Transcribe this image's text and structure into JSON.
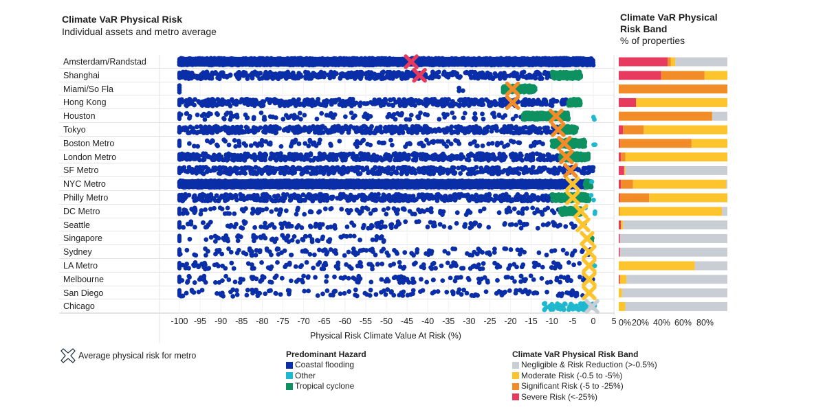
{
  "header": {
    "title": "Climate VaR Physical Risk",
    "subtitle": "Individual assets and metro average"
  },
  "right_header": {
    "title": "Climate VaR Physical Risk Band",
    "subtitle": "% of properties"
  },
  "colors": {
    "coastal_flooding": "#0a2ea8",
    "other": "#1fb8cf",
    "tropical_cyclone": "#0e9160",
    "negligible": "#c8ced3",
    "moderate": "#fdc42e",
    "significant": "#f28c28",
    "severe": "#e63a5e"
  },
  "legends": {
    "average_label": "Average physical risk for metro",
    "hazard": {
      "title": "Predominant Hazard",
      "items": [
        {
          "label": "Coastal flooding",
          "color": "#0a2ea8"
        },
        {
          "label": "Other",
          "color": "#1fb8cf"
        },
        {
          "label": "Tropical cyclone",
          "color": "#0e9160"
        }
      ]
    },
    "band": {
      "title": "Climate VaR Physical Risk Band",
      "items": [
        {
          "label": "Negligible & Risk Reduction (>-0.5%)",
          "color": "#c8ced3"
        },
        {
          "label": "Moderate Risk (-0.5 to -5%)",
          "color": "#fdc42e"
        },
        {
          "label": "Significant Risk (-5 to -25%)",
          "color": "#f28c28"
        },
        {
          "label": "Severe Risk (<-25%)",
          "color": "#e63a5e"
        }
      ]
    }
  },
  "chart_data": [
    {
      "type": "scatter",
      "title": "Climate VaR Physical Risk",
      "subtitle": "Individual assets and metro average",
      "xlabel": "Physical Risk Climate Value At Risk (%)",
      "xlim": [
        -100,
        5
      ],
      "xticks": [
        "-100",
        "-95",
        "-90",
        "-85",
        "-80",
        "-75",
        "-70",
        "-65",
        "-60",
        "-55",
        "-50",
        "-45",
        "-40",
        "-35",
        "-30",
        "-25",
        "-20",
        "-15",
        "-10",
        "-5",
        "0",
        "5"
      ],
      "grid": true,
      "categories": [
        "Amsterdam/Randstad",
        "Shanghai",
        "Miami/So Fla",
        "Hong Kong",
        "Houston",
        "Tokyo",
        "Boston Metro",
        "London Metro",
        "SF Metro",
        "NYC Metro",
        "Philly Metro",
        "DC Metro",
        "Seattle",
        "Singapore",
        "Sydney",
        "LA Metro",
        "Melbourne",
        "San Diego",
        "Chicago"
      ],
      "averages": [
        {
          "metro": "Amsterdam/Randstad",
          "value": -44,
          "band": "severe"
        },
        {
          "metro": "Shanghai",
          "value": -42,
          "band": "severe"
        },
        {
          "metro": "Miami/So Fla",
          "value": -19.5,
          "band": "significant"
        },
        {
          "metro": "Hong Kong",
          "value": -19.5,
          "band": "significant"
        },
        {
          "metro": "Houston",
          "value": -9,
          "band": "significant"
        },
        {
          "metro": "Tokyo",
          "value": -8.5,
          "band": "significant"
        },
        {
          "metro": "Boston Metro",
          "value": -7,
          "band": "significant"
        },
        {
          "metro": "London Metro",
          "value": -6.5,
          "band": "significant"
        },
        {
          "metro": "SF Metro",
          "value": -5.5,
          "band": "significant"
        },
        {
          "metro": "NYC Metro",
          "value": -5,
          "band": "moderate"
        },
        {
          "metro": "Philly Metro",
          "value": -5,
          "band": "moderate"
        },
        {
          "metro": "DC Metro",
          "value": -3,
          "band": "moderate"
        },
        {
          "metro": "Seattle",
          "value": -2.5,
          "band": "moderate"
        },
        {
          "metro": "Singapore",
          "value": -1.5,
          "band": "moderate"
        },
        {
          "metro": "Sydney",
          "value": -1,
          "band": "moderate"
        },
        {
          "metro": "LA Metro",
          "value": -1,
          "band": "moderate"
        },
        {
          "metro": "Melbourne",
          "value": -1,
          "band": "moderate"
        },
        {
          "metro": "San Diego",
          "value": -1,
          "band": "moderate"
        },
        {
          "metro": "Chicago",
          "value": -0.3,
          "band": "negligible"
        }
      ],
      "assets": [
        {
          "metro": "Amsterdam/Randstad",
          "segments": [
            {
              "hazard": "coastal_flooding",
              "from": -100,
              "to": 0,
              "density": "dense"
            }
          ]
        },
        {
          "metro": "Shanghai",
          "segments": [
            {
              "hazard": "coastal_flooding",
              "from": -100,
              "to": -10,
              "density": "medium"
            },
            {
              "hazard": "tropical_cyclone",
              "from": -10,
              "to": -3,
              "density": "dense"
            }
          ]
        },
        {
          "metro": "Miami/So Fla",
          "segments": [
            {
              "hazard": "coastal_flooding",
              "from": -100,
              "to": -100,
              "density": "dense"
            },
            {
              "hazard": "coastal_flooding",
              "from": -33,
              "to": -31,
              "density": "sparse"
            },
            {
              "hazard": "tropical_cyclone",
              "from": -22,
              "to": -14,
              "density": "dense"
            }
          ]
        },
        {
          "metro": "Hong Kong",
          "segments": [
            {
              "hazard": "coastal_flooding",
              "from": -100,
              "to": -6,
              "density": "medium"
            },
            {
              "hazard": "tropical_cyclone",
              "from": -6,
              "to": -3,
              "density": "dense"
            }
          ]
        },
        {
          "metro": "Houston",
          "segments": [
            {
              "hazard": "coastal_flooding",
              "from": -100,
              "to": -15,
              "density": "sparse"
            },
            {
              "hazard": "tropical_cyclone",
              "from": -17,
              "to": -6,
              "density": "dense"
            },
            {
              "hazard": "other",
              "from": 0,
              "to": 0.5,
              "density": "sparse"
            }
          ]
        },
        {
          "metro": "Tokyo",
          "segments": [
            {
              "hazard": "coastal_flooding",
              "from": -100,
              "to": -8,
              "density": "medium"
            },
            {
              "hazard": "tropical_cyclone",
              "from": -8,
              "to": -4,
              "density": "dense"
            }
          ]
        },
        {
          "metro": "Boston Metro",
          "segments": [
            {
              "hazard": "coastal_flooding",
              "from": -100,
              "to": -8,
              "density": "sparse"
            },
            {
              "hazard": "tropical_cyclone",
              "from": -10,
              "to": -2,
              "density": "dense"
            },
            {
              "hazard": "other",
              "from": 0,
              "to": 0.5,
              "density": "sparse"
            }
          ]
        },
        {
          "metro": "London Metro",
          "segments": [
            {
              "hazard": "coastal_flooding",
              "from": -100,
              "to": -8,
              "density": "medium"
            },
            {
              "hazard": "tropical_cyclone",
              "from": -8,
              "to": -1,
              "density": "dense"
            }
          ]
        },
        {
          "metro": "SF Metro",
          "segments": [
            {
              "hazard": "coastal_flooding",
              "from": -100,
              "to": 0,
              "density": "medium"
            }
          ]
        },
        {
          "metro": "NYC Metro",
          "segments": [
            {
              "hazard": "coastal_flooding",
              "from": -100,
              "to": -2,
              "density": "dense"
            },
            {
              "hazard": "tropical_cyclone",
              "from": -2,
              "to": -0.5,
              "density": "dense"
            },
            {
              "hazard": "other",
              "from": -0.5,
              "to": 0.5,
              "density": "sparse"
            }
          ]
        },
        {
          "metro": "Philly Metro",
          "segments": [
            {
              "hazard": "coastal_flooding",
              "from": -100,
              "to": -5,
              "density": "medium"
            },
            {
              "hazard": "tropical_cyclone",
              "from": -10,
              "to": -1,
              "density": "dense"
            },
            {
              "hazard": "other",
              "from": -1,
              "to": 0.5,
              "density": "sparse"
            }
          ]
        },
        {
          "metro": "DC Metro",
          "segments": [
            {
              "hazard": "coastal_flooding",
              "from": -100,
              "to": -3,
              "density": "sparse"
            },
            {
              "hazard": "tropical_cyclone",
              "from": -8,
              "to": -3,
              "density": "dense"
            },
            {
              "hazard": "other",
              "from": -2,
              "to": 0.5,
              "density": "sparse"
            }
          ]
        },
        {
          "metro": "Seattle",
          "segments": [
            {
              "hazard": "coastal_flooding",
              "from": -100,
              "to": 0,
              "density": "sparse"
            }
          ]
        },
        {
          "metro": "Singapore",
          "segments": [
            {
              "hazard": "coastal_flooding",
              "from": -100,
              "to": -50,
              "density": "sparse"
            },
            {
              "hazard": "tropical_cyclone",
              "from": -0.5,
              "to": 0,
              "density": "sparse"
            }
          ]
        },
        {
          "metro": "Sydney",
          "segments": [
            {
              "hazard": "coastal_flooding",
              "from": -100,
              "to": 0,
              "density": "sparse"
            }
          ]
        },
        {
          "metro": "LA Metro",
          "segments": [
            {
              "hazard": "coastal_flooding",
              "from": -100,
              "to": 0,
              "density": "sparse"
            },
            {
              "hazard": "other",
              "from": -1,
              "to": 0.5,
              "density": "sparse"
            }
          ]
        },
        {
          "metro": "Melbourne",
          "segments": [
            {
              "hazard": "coastal_flooding",
              "from": -100,
              "to": 0,
              "density": "sparse"
            }
          ]
        },
        {
          "metro": "San Diego",
          "segments": [
            {
              "hazard": "coastal_flooding",
              "from": -100,
              "to": 0,
              "density": "sparse"
            }
          ]
        },
        {
          "metro": "Chicago",
          "segments": [
            {
              "hazard": "other",
              "from": -12,
              "to": 0.5,
              "density": "medium"
            }
          ]
        }
      ]
    },
    {
      "type": "bar",
      "stacked": true,
      "orientation": "horizontal",
      "title": "Climate VaR Physical Risk Band",
      "subtitle": "% of properties",
      "xticks": [
        "0%",
        "20%",
        "40%",
        "60%",
        "80%"
      ],
      "xlim": [
        0,
        100
      ],
      "categories": [
        "Amsterdam/Randstad",
        "Shanghai",
        "Miami/So Fla",
        "Hong Kong",
        "Houston",
        "Tokyo",
        "Boston Metro",
        "London Metro",
        "SF Metro",
        "NYC Metro",
        "Philly Metro",
        "DC Metro",
        "Seattle",
        "Singapore",
        "Sydney",
        "LA Metro",
        "Melbourne",
        "San Diego",
        "Chicago"
      ],
      "series": [
        {
          "name": "Severe Risk (<-25%)",
          "key": "severe",
          "values": [
            45,
            39,
            0,
            16,
            0,
            4,
            1,
            2,
            5,
            2,
            1,
            0,
            2,
            1,
            1,
            0,
            1,
            0,
            0
          ]
        },
        {
          "name": "Significant Risk (-5 to -25%)",
          "key": "significant",
          "values": [
            3,
            40,
            100,
            0,
            86,
            19,
            66,
            4,
            0,
            11,
            27,
            1,
            0,
            0,
            0,
            0,
            0,
            0,
            0
          ]
        },
        {
          "name": "Moderate Risk (-0.5 to -5%)",
          "key": "moderate",
          "values": [
            4,
            21,
            0,
            84,
            0,
            77,
            33,
            94,
            1,
            86,
            72,
            94,
            2,
            0,
            0,
            70,
            6,
            3,
            6
          ]
        },
        {
          "name": "Negligible & Risk Reduction (>-0.5%)",
          "key": "negligible",
          "values": [
            48,
            0,
            0,
            0,
            14,
            0,
            0,
            0,
            94,
            1,
            0,
            5,
            96,
            99,
            99,
            30,
            93,
            97,
            94
          ]
        }
      ]
    }
  ]
}
